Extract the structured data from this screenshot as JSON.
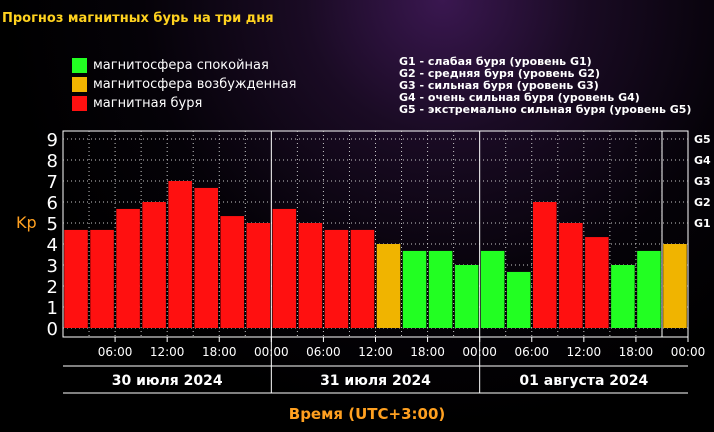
{
  "page": {
    "title": "Прогноз магнитных бурь на три дня"
  },
  "legend": {
    "items": [
      {
        "label": "магнитосфера спокойная",
        "color": "#22ff22"
      },
      {
        "label": "магнитосфера возбужденная",
        "color": "#f0b400"
      },
      {
        "label": "магнитная буря",
        "color": "#ff1010"
      }
    ],
    "storm_levels": [
      "G1 - слабая буря (уровень G1)",
      "G2 - средняя буря (уровень G2)",
      "G3 - сильная буря (уровень G3)",
      "G4 - очень сильная буря (уровень G4)",
      "G5 - экстремально сильная буря (уровень G5)"
    ]
  },
  "chart_data": {
    "type": "bar",
    "ylabel": "Kp",
    "xlabel": "Время (UTC+3:00)",
    "ylim": [
      0,
      9
    ],
    "yticks": [
      "0",
      "1",
      "2",
      "3",
      "4",
      "5",
      "6",
      "7",
      "8",
      "9"
    ],
    "g_levels": [
      {
        "label": "G1",
        "value": 5
      },
      {
        "label": "G2",
        "value": 6
      },
      {
        "label": "G3",
        "value": 7
      },
      {
        "label": "G4",
        "value": 8
      },
      {
        "label": "G5",
        "value": 9
      }
    ],
    "time_ticks": [
      "06:00",
      "12:00",
      "18:00",
      "00:00",
      "06:00",
      "12:00",
      "18:00",
      "00:00",
      "06:00",
      "12:00",
      "18:00",
      "00:00"
    ],
    "days": [
      "30 июля 2024",
      "31 июля 2024",
      "01 августа 2024"
    ],
    "values": [
      4.67,
      4.67,
      5.67,
      6.0,
      7.0,
      6.67,
      5.33,
      5.0,
      5.67,
      5.0,
      4.67,
      4.67,
      4.0,
      3.67,
      3.67,
      3.0,
      3.67,
      2.67,
      6.0,
      5.0,
      4.33,
      3.0,
      3.67,
      4.0
    ],
    "colors": [
      "#ff1010",
      "#ff1010",
      "#ff1010",
      "#ff1010",
      "#ff1010",
      "#ff1010",
      "#ff1010",
      "#ff1010",
      "#ff1010",
      "#ff1010",
      "#ff1010",
      "#ff1010",
      "#f0b400",
      "#22ff22",
      "#22ff22",
      "#22ff22",
      "#22ff22",
      "#22ff22",
      "#ff1010",
      "#ff1010",
      "#ff1010",
      "#22ff22",
      "#22ff22",
      "#f0b400"
    ],
    "grid": true
  }
}
